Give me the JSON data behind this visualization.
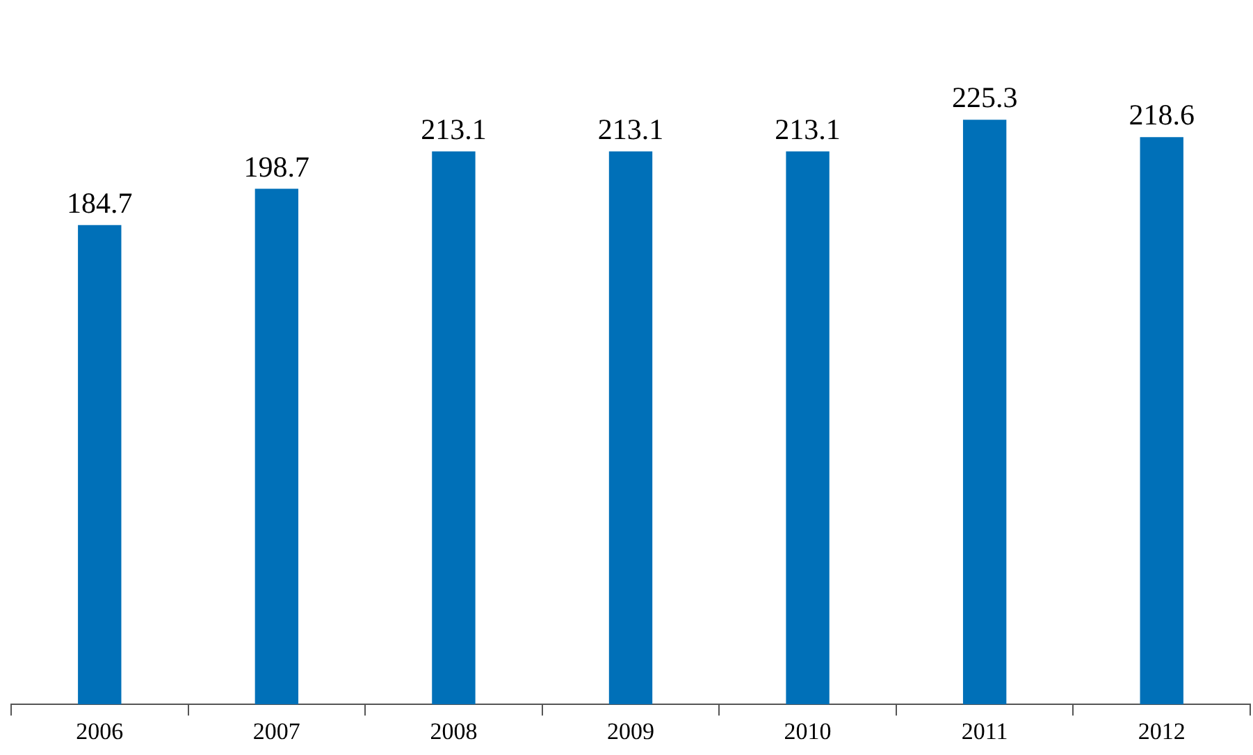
{
  "chart_data": {
    "type": "bar",
    "categories": [
      "2006",
      "2007",
      "2008",
      "2009",
      "2010",
      "2011",
      "2012"
    ],
    "values": [
      184.7,
      198.7,
      213.1,
      213.1,
      213.1,
      225.3,
      218.6
    ],
    "color": "#0070b8",
    "data_labels": true
  }
}
